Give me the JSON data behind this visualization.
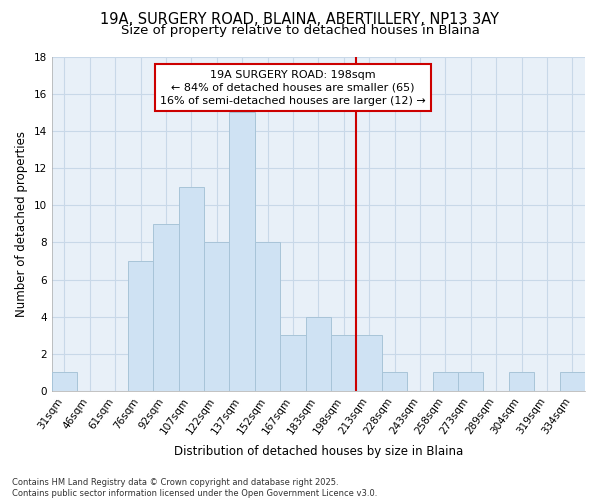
{
  "title_line1": "19A, SURGERY ROAD, BLAINA, ABERTILLERY, NP13 3AY",
  "title_line2": "Size of property relative to detached houses in Blaina",
  "xlabel": "Distribution of detached houses by size in Blaina",
  "ylabel": "Number of detached properties",
  "bar_labels": [
    "31sqm",
    "46sqm",
    "61sqm",
    "76sqm",
    "92sqm",
    "107sqm",
    "122sqm",
    "137sqm",
    "152sqm",
    "167sqm",
    "183sqm",
    "198sqm",
    "213sqm",
    "228sqm",
    "243sqm",
    "258sqm",
    "273sqm",
    "289sqm",
    "304sqm",
    "319sqm",
    "334sqm"
  ],
  "bar_values": [
    1,
    0,
    0,
    7,
    9,
    11,
    8,
    15,
    8,
    3,
    4,
    3,
    3,
    1,
    0,
    1,
    1,
    0,
    1,
    0,
    1
  ],
  "bar_color": "#cfe2f3",
  "bar_edge_color": "#a8c4d8",
  "vline_x_index": 11,
  "vline_color": "#cc0000",
  "annotation_text": "19A SURGERY ROAD: 198sqm\n← 84% of detached houses are smaller (65)\n16% of semi-detached houses are larger (12) →",
  "annotation_box_color": "#ffffff",
  "annotation_box_edge": "#cc0000",
  "ylim": [
    0,
    18
  ],
  "yticks": [
    0,
    2,
    4,
    6,
    8,
    10,
    12,
    14,
    16,
    18
  ],
  "grid_color": "#c8d8e8",
  "bg_color": "#e8f0f8",
  "footer_text": "Contains HM Land Registry data © Crown copyright and database right 2025.\nContains public sector information licensed under the Open Government Licence v3.0.",
  "title_fontsize": 10.5,
  "subtitle_fontsize": 9.5,
  "axis_label_fontsize": 8.5,
  "tick_fontsize": 7.5,
  "annotation_fontsize": 8,
  "footer_fontsize": 6
}
